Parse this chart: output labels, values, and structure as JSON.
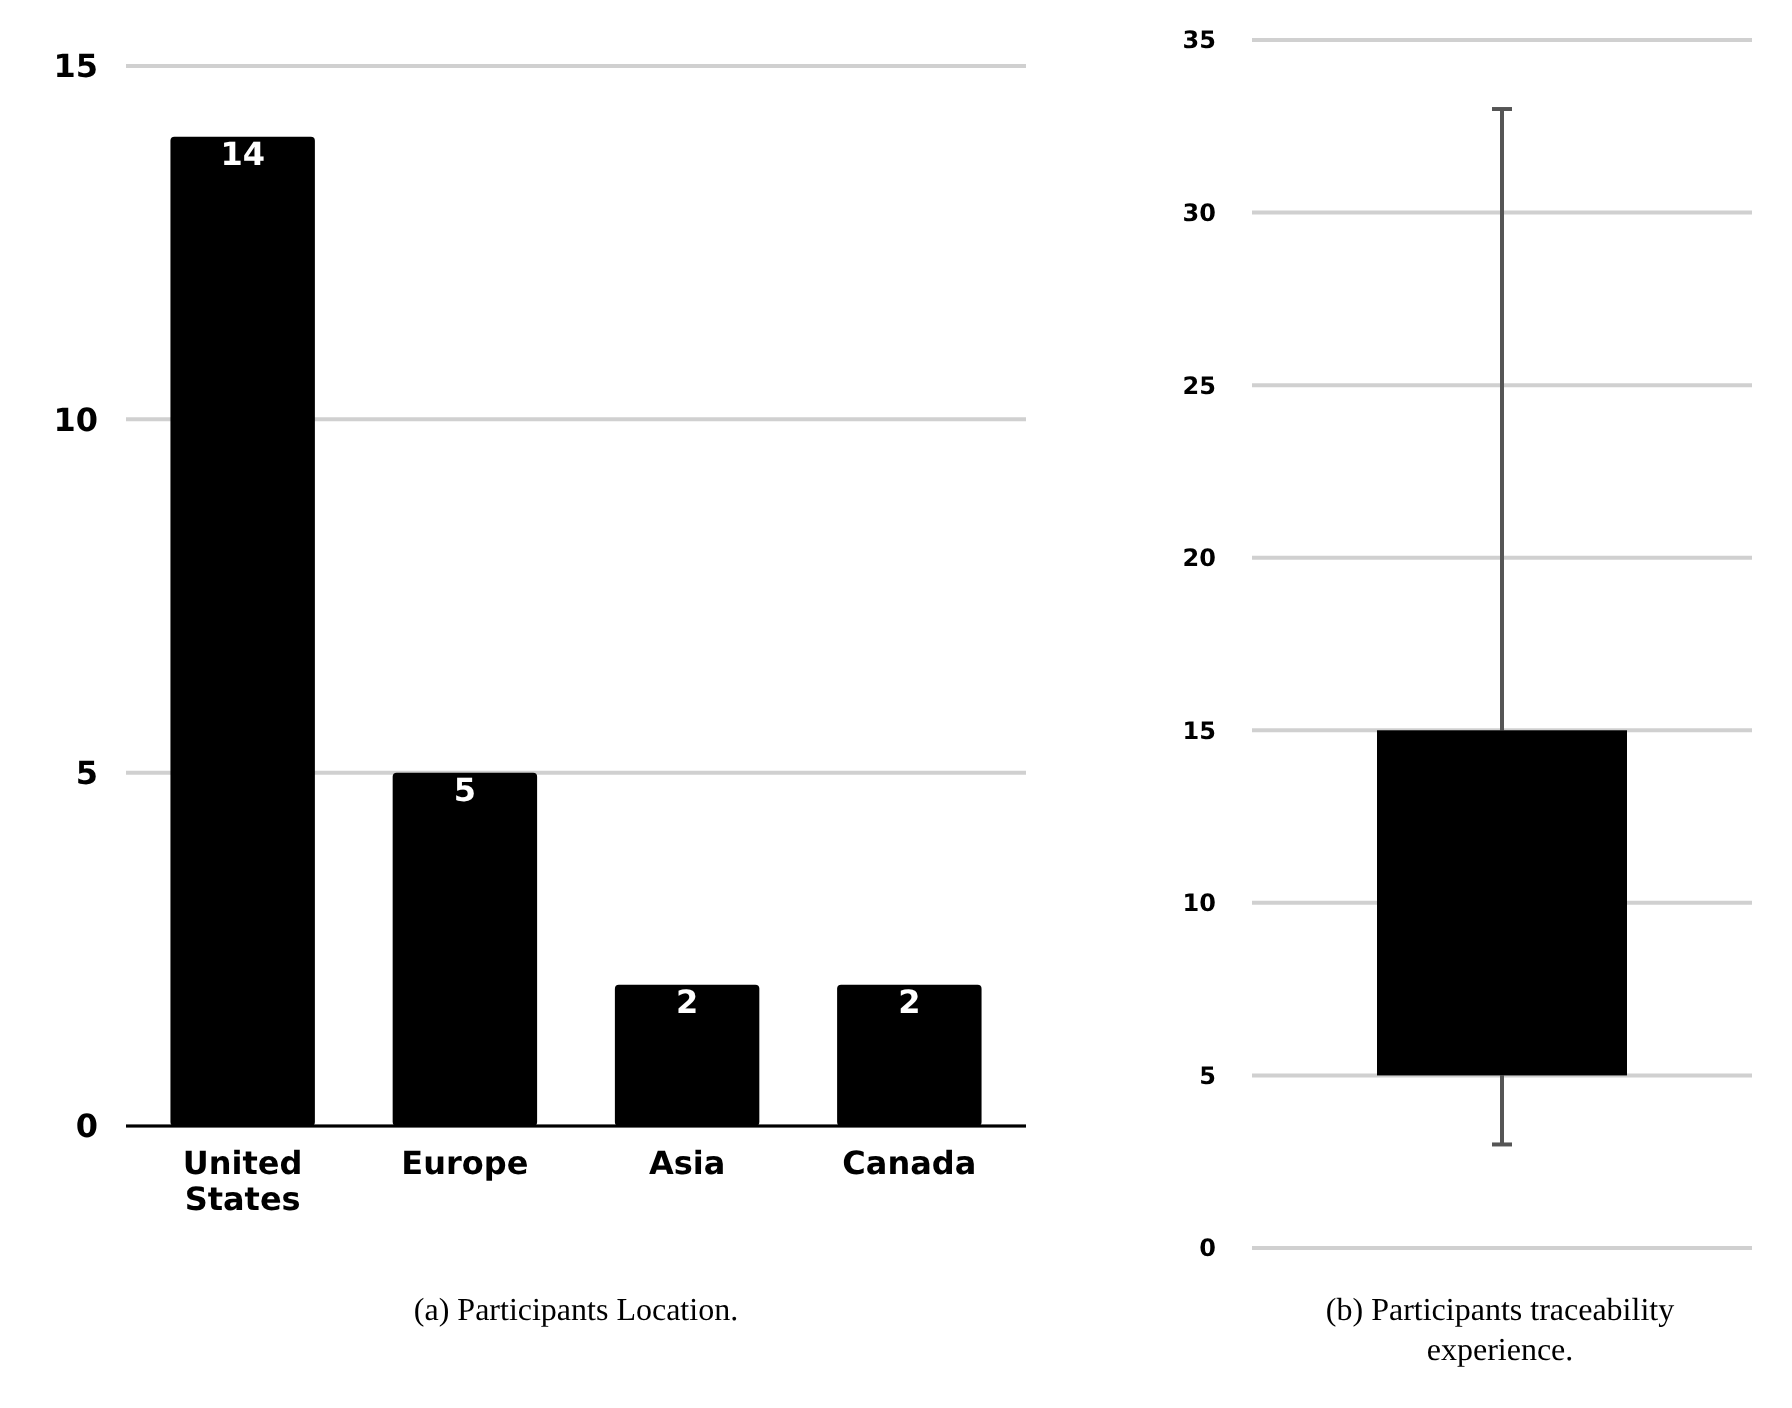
{
  "chart_data": [
    {
      "type": "bar",
      "title": "(a) Participants Location.",
      "categories": [
        "United States",
        "Europe",
        "Asia",
        "Canada"
      ],
      "values": [
        14,
        5,
        2,
        2
      ],
      "color": "#000000",
      "ylim": [
        0,
        15
      ],
      "yticks": [
        0,
        5,
        10,
        15
      ],
      "grid": "y",
      "data_labels": true
    },
    {
      "type": "box",
      "title": "(b) Participants traceability experience.",
      "categories": [
        null
      ],
      "boxes": [
        {
          "low": 3,
          "q1": 5,
          "q3": 15,
          "high": 33
        }
      ],
      "color": "#000000",
      "ylim": [
        0,
        35
      ],
      "yticks": [
        0,
        5,
        10,
        15,
        20,
        25,
        30,
        35
      ],
      "grid": "y"
    }
  ]
}
